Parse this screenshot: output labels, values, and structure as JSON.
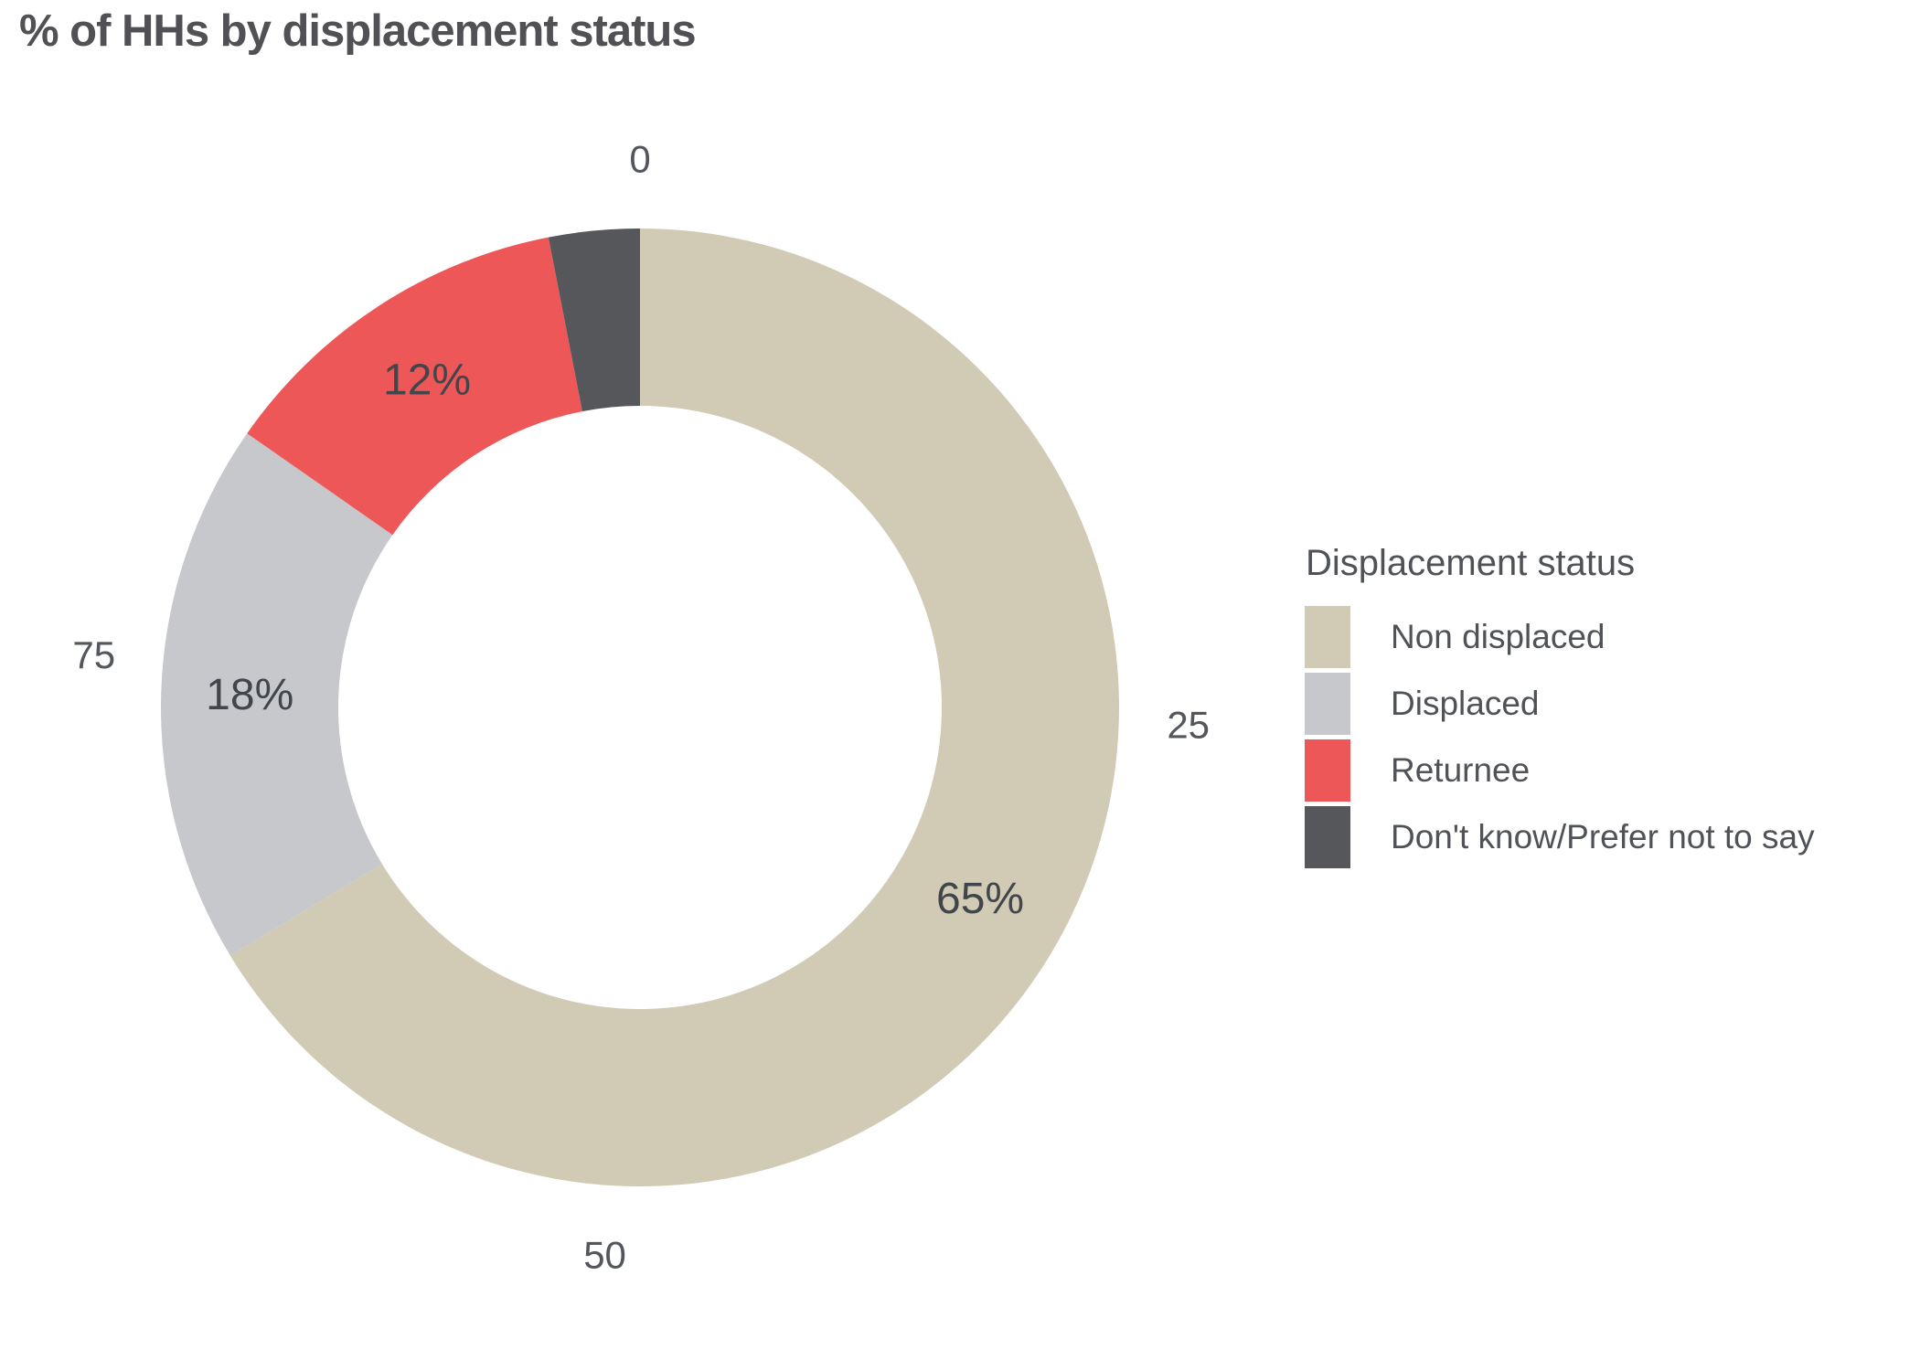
{
  "title": "% of HHs by displacement status",
  "legend": {
    "title": "Displacement status"
  },
  "chart_data": {
    "type": "donut",
    "title": "% of HHs by displacement status",
    "categories": [
      "Non displaced",
      "Displaced",
      "Returnee",
      "Don't know/Prefer not to say"
    ],
    "values": [
      65,
      18,
      12,
      3
    ],
    "data_labels": [
      "65%",
      "18%",
      "12%",
      null
    ],
    "colors": [
      "#d1cab4",
      "#c7c8cb",
      "#ed5757",
      "#56575b"
    ],
    "scale_ticks": [
      0,
      25,
      50,
      75
    ],
    "legend_title": "Displacement status",
    "legend_position": "right",
    "start_angle_deg": 0,
    "direction": "clockwise",
    "inner_radius_ratio": 0.63,
    "background": "#ffffff"
  }
}
